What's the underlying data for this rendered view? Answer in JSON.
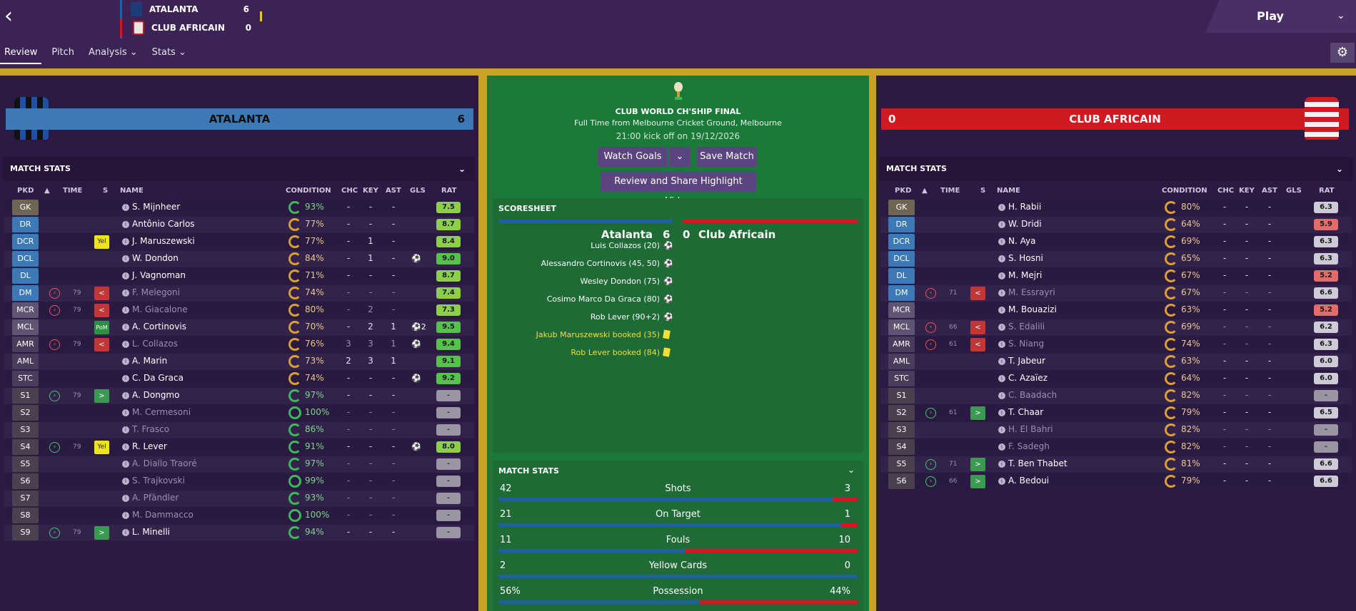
{
  "header": {
    "back_label": "‹",
    "play_label": "Play"
  },
  "scorebox": {
    "home": {
      "name": "ATALANTA",
      "score": "6"
    },
    "away": {
      "name": "CLUB AFRICAIN",
      "score": "0"
    }
  },
  "tabs": [
    {
      "label": "Review"
    },
    {
      "label": "Pitch"
    },
    {
      "label": "Analysis ⌄"
    },
    {
      "label": "Stats ⌄"
    }
  ],
  "home": {
    "name": "ATALANTA",
    "score": "6",
    "color": "#3d79b6"
  },
  "away": {
    "name": "CLUB AFRICAIN",
    "score": "0",
    "color": "#d01a22"
  },
  "match": {
    "competition": "CLUB WORLD CH'SHIP FINAL",
    "venue": "Full Time from Melbourne Cricket Ground, Melbourne",
    "kickoff": "21:00 kick off on 19/12/2026",
    "watch_goals": "Watch Goals",
    "save_match": "Save Match",
    "highlight": "Review and Share Highlight Video"
  },
  "columns": {
    "pkd": "PKD",
    "time": "TIME",
    "s": "S",
    "name": "NAME",
    "condition": "CONDITION",
    "chc": "CHC",
    "key": "KEY",
    "ast": "AST",
    "gls": "GLS",
    "rat": "RAT"
  },
  "match_stats_title": "MATCH STATS",
  "home_players": [
    {
      "pos": "GK",
      "name": "S. Mijnheer",
      "cond": "93%",
      "chc": "-",
      "key": "-",
      "ast": "-",
      "gls": "",
      "rat": "7.5"
    },
    {
      "pos": "DR",
      "name": "Antônio Carlos",
      "cond": "77%",
      "chc": "-",
      "key": "-",
      "ast": "-",
      "gls": "",
      "rat": "8.7"
    },
    {
      "pos": "DCR",
      "s": "Yel",
      "name": "J. Maruszewski",
      "cond": "77%",
      "chc": "-",
      "key": "1",
      "ast": "-",
      "gls": "",
      "rat": "8.4"
    },
    {
      "pos": "DCL",
      "name": "W. Dondon",
      "cond": "84%",
      "chc": "-",
      "key": "1",
      "ast": "-",
      "gls": "⚽",
      "rat": "9.0"
    },
    {
      "pos": "DL",
      "name": "J. Vagnoman",
      "cond": "71%",
      "chc": "-",
      "key": "-",
      "ast": "-",
      "gls": "",
      "rat": "8.7"
    },
    {
      "pos": "DM",
      "time": "79",
      "s": "<",
      "name": "F. Melegoni",
      "cond": "74%",
      "chc": "-",
      "key": "-",
      "ast": "-",
      "gls": "",
      "rat": "7.4"
    },
    {
      "pos": "MCR",
      "time": "79",
      "s": "<",
      "name": "M. Giacalone",
      "cond": "80%",
      "chc": "-",
      "key": "2",
      "ast": "-",
      "gls": "",
      "rat": "7.3"
    },
    {
      "pos": "MCL",
      "s": "PoM",
      "name": "A. Cortinovis",
      "cond": "70%",
      "chc": "-",
      "key": "2",
      "ast": "1",
      "gls": "⚽2",
      "rat": "9.5"
    },
    {
      "pos": "AMR",
      "time": "79",
      "s": "<",
      "name": "L. Collazos",
      "cond": "76%",
      "chc": "3",
      "key": "3",
      "ast": "1",
      "gls": "⚽",
      "rat": "9.4"
    },
    {
      "pos": "AML",
      "name": "A. Marin",
      "cond": "73%",
      "chc": "2",
      "key": "3",
      "ast": "1",
      "gls": "",
      "rat": "9.1"
    },
    {
      "pos": "STC",
      "name": "C. Da Graca",
      "cond": "74%",
      "chc": "-",
      "key": "-",
      "ast": "-",
      "gls": "⚽",
      "rat": "9.2"
    },
    {
      "pos": "S1",
      "time": "79",
      "s": ">",
      "name": "A. Dongmo",
      "cond": "97%",
      "chc": "-",
      "key": "-",
      "ast": "-",
      "gls": "",
      "rat": "-"
    },
    {
      "pos": "S2",
      "name": "M. Cermesoni",
      "cond": "100%",
      "chc": "-",
      "key": "-",
      "ast": "-",
      "gls": "",
      "rat": "-"
    },
    {
      "pos": "S3",
      "name": "T. Frasco",
      "cond": "86%",
      "chc": "-",
      "key": "-",
      "ast": "-",
      "gls": "",
      "rat": "-"
    },
    {
      "pos": "S4",
      "time": "79",
      "s": "Yel",
      "name": "R. Lever",
      "cond": "91%",
      "chc": "-",
      "key": "-",
      "ast": "-",
      "gls": "⚽",
      "rat": "8.0"
    },
    {
      "pos": "S5",
      "name": "A. Diallo Traoré",
      "cond": "97%",
      "chc": "-",
      "key": "-",
      "ast": "-",
      "gls": "",
      "rat": "-"
    },
    {
      "pos": "S6",
      "name": "S. Trajkovski",
      "cond": "99%",
      "chc": "-",
      "key": "-",
      "ast": "-",
      "gls": "",
      "rat": "-"
    },
    {
      "pos": "S7",
      "name": "A. Pfändler",
      "cond": "93%",
      "chc": "-",
      "key": "-",
      "ast": "-",
      "gls": "",
      "rat": "-"
    },
    {
      "pos": "S8",
      "name": "M. Dammacco",
      "cond": "100%",
      "chc": "-",
      "key": "-",
      "ast": "-",
      "gls": "",
      "rat": "-"
    },
    {
      "pos": "S9",
      "time": "79",
      "s": ">",
      "name": "L. Minelli",
      "cond": "94%",
      "chc": "-",
      "key": "-",
      "ast": "-",
      "gls": "",
      "rat": "-"
    }
  ],
  "away_players": [
    {
      "pos": "GK",
      "name": "H. Rabii",
      "cond": "80%",
      "chc": "-",
      "key": "-",
      "ast": "-",
      "rat": "6.3"
    },
    {
      "pos": "DR",
      "name": "W. Dridi",
      "cond": "64%",
      "chc": "-",
      "key": "-",
      "ast": "-",
      "rat": "5.9"
    },
    {
      "pos": "DCR",
      "name": "N. Aya",
      "cond": "69%",
      "chc": "-",
      "key": "-",
      "ast": "-",
      "rat": "6.3"
    },
    {
      "pos": "DCL",
      "name": "S. Hosni",
      "cond": "65%",
      "chc": "-",
      "key": "-",
      "ast": "-",
      "rat": "6.3"
    },
    {
      "pos": "DL",
      "name": "M. Mejri",
      "cond": "67%",
      "chc": "-",
      "key": "-",
      "ast": "-",
      "rat": "5.2"
    },
    {
      "pos": "DM",
      "time": "71",
      "s": "<",
      "name": "M. Essrayri",
      "cond": "67%",
      "chc": "-",
      "key": "-",
      "ast": "-",
      "rat": "6.6"
    },
    {
      "pos": "MCR",
      "name": "M. Bouazizi",
      "cond": "63%",
      "chc": "-",
      "key": "-",
      "ast": "-",
      "rat": "5.2"
    },
    {
      "pos": "MCL",
      "time": "66",
      "s": "<",
      "name": "S. Edalili",
      "cond": "69%",
      "chc": "-",
      "key": "-",
      "ast": "-",
      "rat": "6.2"
    },
    {
      "pos": "AMR",
      "time": "61",
      "s": "<",
      "name": "S. Niang",
      "cond": "74%",
      "chc": "-",
      "key": "-",
      "ast": "-",
      "rat": "6.3"
    },
    {
      "pos": "AML",
      "name": "T. Jabeur",
      "cond": "63%",
      "chc": "-",
      "key": "-",
      "ast": "-",
      "rat": "6.0"
    },
    {
      "pos": "STC",
      "name": "C. Azaïez",
      "cond": "64%",
      "chc": "-",
      "key": "-",
      "ast": "-",
      "rat": "6.0"
    },
    {
      "pos": "S1",
      "name": "C. Baadach",
      "cond": "82%",
      "chc": "-",
      "key": "-",
      "ast": "-",
      "rat": "-"
    },
    {
      "pos": "S2",
      "time": "61",
      "s": ">",
      "name": "T. Chaar",
      "cond": "79%",
      "chc": "-",
      "key": "-",
      "ast": "-",
      "rat": "6.5"
    },
    {
      "pos": "S3",
      "name": "H. El Bahri",
      "cond": "82%",
      "chc": "-",
      "key": "-",
      "ast": "-",
      "rat": "-"
    },
    {
      "pos": "S4",
      "name": "F. Sadegh",
      "cond": "82%",
      "chc": "-",
      "key": "-",
      "ast": "-",
      "rat": "-"
    },
    {
      "pos": "S5",
      "time": "71",
      "s": ">",
      "name": "T. Ben Thabet",
      "cond": "81%",
      "chc": "-",
      "key": "-",
      "ast": "-",
      "rat": "6.6"
    },
    {
      "pos": "S6",
      "time": "66",
      "s": ">",
      "name": "A. Bedoui",
      "cond": "79%",
      "chc": "-",
      "key": "-",
      "ast": "-",
      "rat": "6.6"
    }
  ],
  "scoresheet": {
    "title": "SCORESHEET",
    "home": "Atalanta",
    "home_score": "6",
    "away_score": "0",
    "away": "Club Africain",
    "events": [
      {
        "text": "Luis Collazos (20)",
        "type": "goal"
      },
      {
        "text": "Alessandro Cortinovis (45, 50)",
        "type": "goal"
      },
      {
        "text": "Wesley Dondon (75)",
        "type": "goal"
      },
      {
        "text": "Cosimo Marco Da Graca (80)",
        "type": "goal"
      },
      {
        "text": "Rob Lever (90+2)",
        "type": "goal"
      },
      {
        "text": "Jakub Maruszewski booked (35)",
        "type": "yellow"
      },
      {
        "text": "Rob Lever booked (84)",
        "type": "yellow"
      }
    ]
  },
  "team_stats": [
    {
      "label": "Shots",
      "home": "42",
      "away": "3",
      "home_frac": 0.93
    },
    {
      "label": "On Target",
      "home": "21",
      "away": "1",
      "home_frac": 0.955
    },
    {
      "label": "Fouls",
      "home": "11",
      "away": "10",
      "home_frac": 0.52
    },
    {
      "label": "Yellow Cards",
      "home": "2",
      "away": "0",
      "home_frac": 1.0
    },
    {
      "label": "Possession",
      "home": "56%",
      "away": "44%",
      "home_frac": 0.56
    }
  ]
}
